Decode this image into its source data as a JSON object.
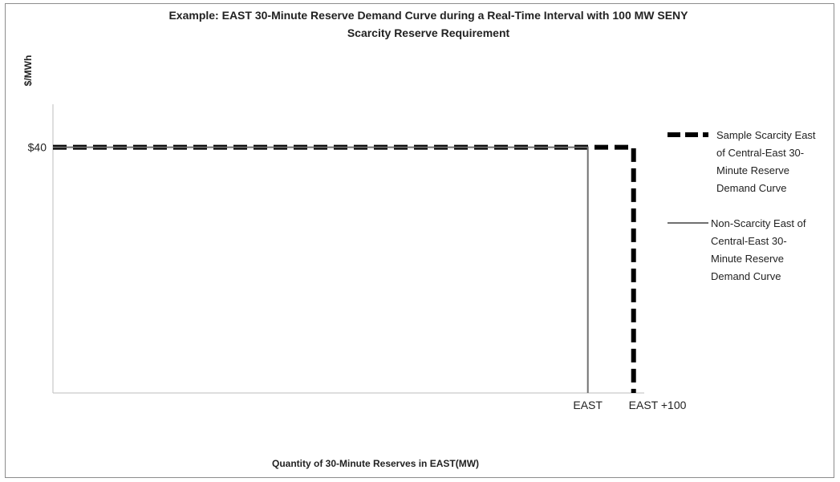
{
  "chart_data": {
    "type": "line",
    "title_lines": [
      "Example: EAST 30-Minute Reserve Demand Curve during a Real-Time Interval with 100 MW SENY",
      "Scarcity Reserve Requirement"
    ],
    "xlabel": "Quantity of 30-Minute Reserves in EAST(MW)",
    "ylabel": "$/MWh",
    "y_tick_labels": [
      "$40"
    ],
    "x_tick_labels": [
      "EAST",
      "EAST +100"
    ],
    "price_level": 40,
    "x_points": {
      "east": 1,
      "east_plus_100": 1.0855
    },
    "xlim": [
      0,
      1.2
    ],
    "ylim": [
      0,
      47
    ],
    "grid": false,
    "legend_position": "right",
    "series": [
      {
        "name_lines": [
          "Sample Scarcity East",
          "of Central-East 30-",
          "Minute Reserve",
          "Demand Curve"
        ],
        "style": "dashed",
        "color": "#000000",
        "points": [
          [
            0,
            40
          ],
          [
            1.0855,
            40
          ],
          [
            1.0855,
            0
          ]
        ]
      },
      {
        "name_lines": [
          "Non-Scarcity East of",
          "Central-East 30-",
          "Minute Reserve",
          "Demand Curve"
        ],
        "style": "solid",
        "color": "#707070",
        "points": [
          [
            0,
            40
          ],
          [
            1,
            40
          ],
          [
            1,
            0
          ]
        ]
      }
    ]
  }
}
